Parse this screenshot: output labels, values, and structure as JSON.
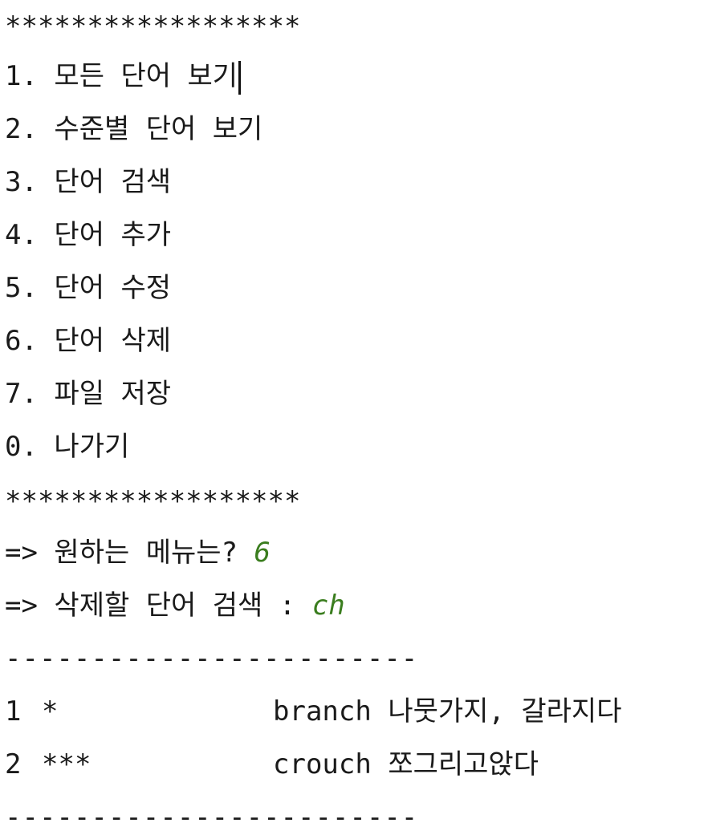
{
  "separator_stars": "******************",
  "menu_items": [
    "1. 모든 단어 보기",
    "2. 수준별 단어 보기",
    "3. 단어 검색",
    "4. 단어 추가",
    "5. 단어 수정",
    "6. 단어 삭제",
    "7. 파일 저장",
    "0. 나가기"
  ],
  "prompt_menu": {
    "label": "=> 원하는 메뉴는? ",
    "value": "6"
  },
  "prompt_search": {
    "label": "=> 삭제할 단어 검색 : ",
    "value": "ch"
  },
  "separator_dashes": "------------------------",
  "results": [
    {
      "num": "1",
      "level": "*",
      "word": "branch",
      "meaning": "나뭇가지, 갈라지다"
    },
    {
      "num": "2",
      "level": "***",
      "word": "crouch",
      "meaning": "쪼그리고앉다"
    }
  ]
}
